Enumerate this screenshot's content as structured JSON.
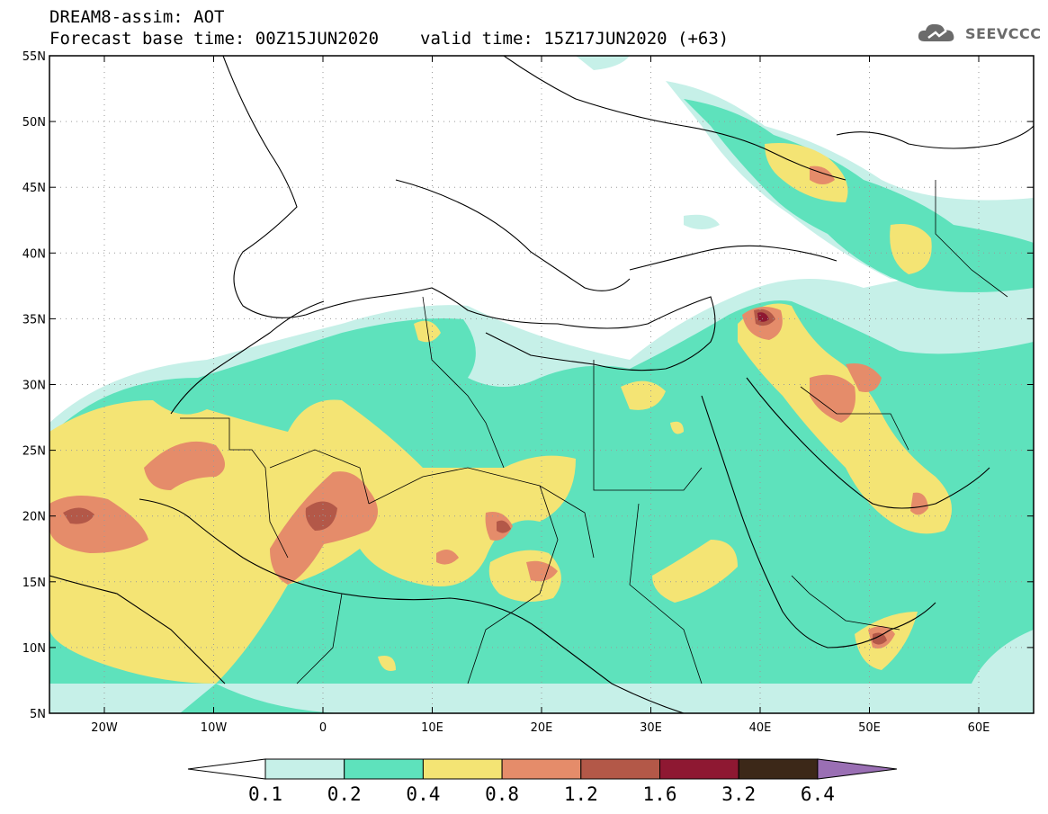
{
  "header": {
    "model_title": "DREAM8-assim: AOT",
    "base_time": "Forecast base time: 00Z15JUN2020",
    "valid_time": "valid time: 15Z17JUN2020 (+63)"
  },
  "logo": {
    "text": "SEEVCCC",
    "icon": "cloud-icon"
  },
  "map": {
    "lat_labels": [
      "55N",
      "50N",
      "45N",
      "40N",
      "35N",
      "30N",
      "25N",
      "20N",
      "15N",
      "10N",
      "5N"
    ],
    "lon_labels": [
      "20W",
      "10W",
      "0",
      "10E",
      "20E",
      "30E",
      "40E",
      "50E",
      "60E"
    ],
    "colors": {
      "land_border": "#000000",
      "grid": "#9a9a9a",
      "level_0_1": "#c6f0e8",
      "level_0_2": "#5ee2bc",
      "level_0_4": "#f4e474",
      "level_0_8": "#e58c6a",
      "level_1_2": "#b35848",
      "level_1_6": "#8e1832",
      "level_3_2": "#3c2818",
      "level_6_4": "#9a6fb4"
    }
  },
  "colorbar": {
    "labels": [
      "0.1",
      "0.2",
      "0.4",
      "0.8",
      "1.2",
      "1.6",
      "3.2",
      "6.4"
    ],
    "colors": [
      "#ffffff",
      "#c6f0e8",
      "#5ee2bc",
      "#f4e474",
      "#e58c6a",
      "#b35848",
      "#8e1832",
      "#3c2818",
      "#9a6fb4"
    ]
  }
}
